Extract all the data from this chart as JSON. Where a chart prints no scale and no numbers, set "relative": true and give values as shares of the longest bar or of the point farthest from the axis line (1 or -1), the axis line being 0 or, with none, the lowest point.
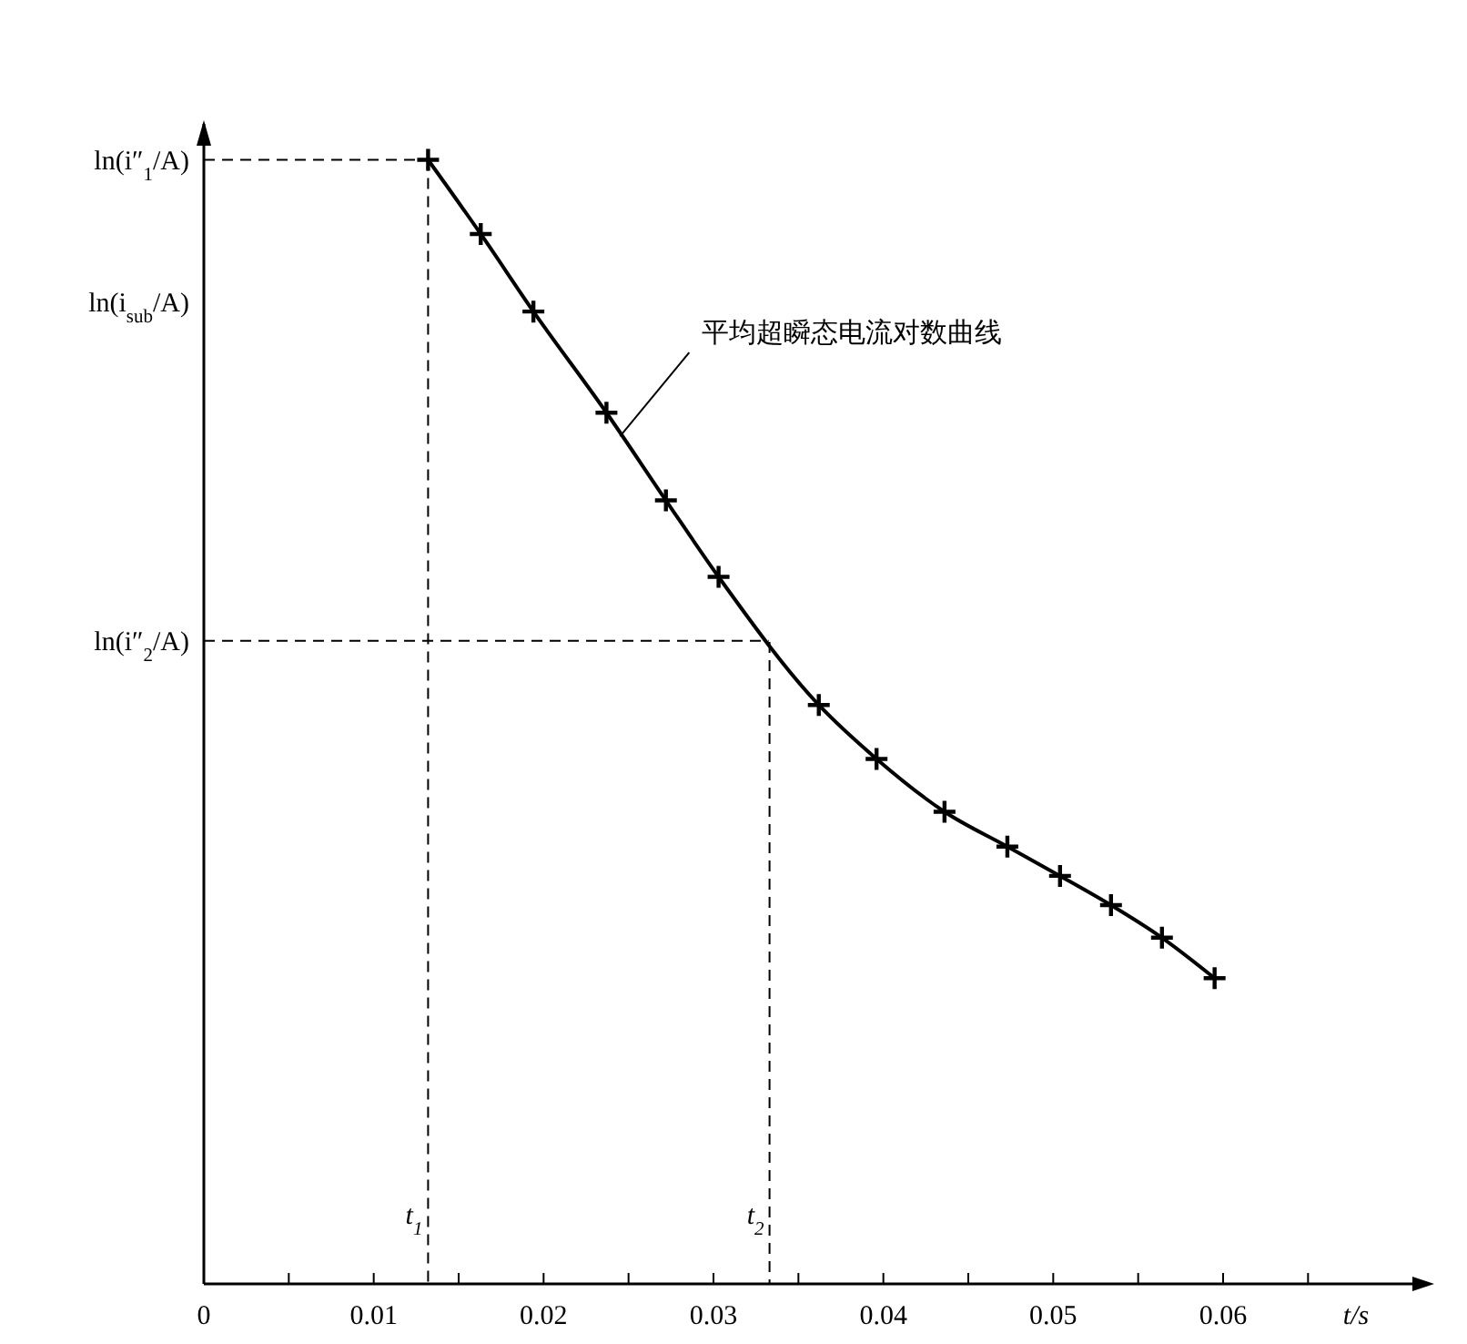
{
  "chart_data": {
    "type": "line",
    "relative": true,
    "xlabel": "t/s",
    "x": [
      0.0132,
      0.0163,
      0.0194,
      0.0237,
      0.0272,
      0.0303,
      0.0362,
      0.0396,
      0.0436,
      0.0473,
      0.0504,
      0.0534,
      0.0564,
      0.0595
    ],
    "series": [
      {
        "color": "#000000",
        "values": [
          1,
          0.934,
          0.865,
          0.775,
          0.697,
          0.629,
          0.515,
          0.467,
          0.42,
          0.389,
          0.363,
          0.337,
          0.308,
          0.272
        ]
      }
    ],
    "marker": "cross",
    "line_style": "solid",
    "grid": false,
    "xlim": [
      0,
      0.072
    ],
    "xticks": [
      0,
      {
        "value": 0.005,
        "label": null
      },
      0.01,
      {
        "value": 0.015,
        "label": null
      },
      0.02,
      {
        "value": 0.025,
        "label": null
      },
      0.03,
      {
        "value": 0.035,
        "label": null
      },
      0.04,
      {
        "value": 0.045,
        "label": null
      },
      0.05,
      {
        "value": 0.055,
        "label": null
      },
      0.06,
      {
        "value": 0.065,
        "label": null
      }
    ],
    "ref_lines": [
      {
        "axis": "y",
        "value": 1,
        "label": "ln(i″$_{1}$/A)",
        "line_style": "dashed"
      },
      {
        "axis": "y",
        "value": 0.572,
        "label": "ln(i″$_{2}$/A)",
        "line_style": "dashed"
      },
      {
        "axis": "x",
        "value": 0.0132,
        "label": "t$_{1}$",
        "line_style": "dashed"
      },
      {
        "axis": "x",
        "value": 0.0333,
        "label": "t$_{2}$",
        "line_style": "dashed"
      }
    ],
    "annotations": [
      "ln(i$_{sub}$/A)",
      {
        "text": "平均超瞬态电流对数曲线",
        "x": 0.0245,
        "y": 0.754
      }
    ]
  }
}
